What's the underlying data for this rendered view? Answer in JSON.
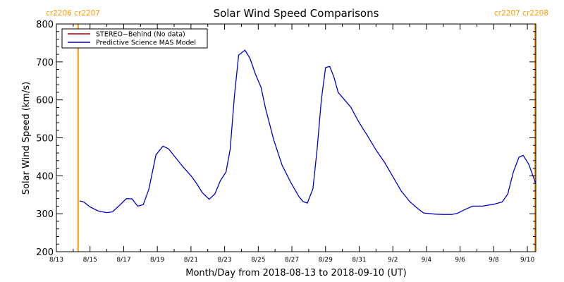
{
  "chart_data": {
    "type": "line",
    "title": "Solar Wind Speed Comparisons",
    "xlabel": "Month/Day from 2018-08-13 to 2018-09-10 (UT)",
    "ylabel": "Solar Wind Speed (km/s)",
    "xlim": [
      "2018-08-13",
      "2018-09-10T12:00"
    ],
    "ylim": [
      200,
      800
    ],
    "y_ticks": [
      200,
      300,
      400,
      500,
      600,
      700,
      800
    ],
    "x_ticks": [
      {
        "date": "2018-08-13",
        "label": "8/13"
      },
      {
        "date": "2018-08-15",
        "label": "8/15"
      },
      {
        "date": "2018-08-17",
        "label": "8/17"
      },
      {
        "date": "2018-08-19",
        "label": "8/19"
      },
      {
        "date": "2018-08-21",
        "label": "8/21"
      },
      {
        "date": "2018-08-23",
        "label": "8/23"
      },
      {
        "date": "2018-08-25",
        "label": "8/25"
      },
      {
        "date": "2018-08-27",
        "label": "8/27"
      },
      {
        "date": "2018-08-29",
        "label": "8/29"
      },
      {
        "date": "2018-08-31",
        "label": "8/31"
      },
      {
        "date": "2018-09-02",
        "label": "9/2"
      },
      {
        "date": "2018-09-04",
        "label": "9/4"
      },
      {
        "date": "2018-09-06",
        "label": "9/6"
      },
      {
        "date": "2018-09-08",
        "label": "9/8"
      },
      {
        "date": "2018-09-10",
        "label": "9/10"
      }
    ],
    "legend_position": "top-left",
    "grid": false,
    "series": [
      {
        "name": "STEREO−Behind (No data)",
        "color": "#aa0000",
        "points": []
      },
      {
        "name": "Predictive Science MAS Model",
        "color": "#0000cc",
        "points": [
          [
            "2018-08-14T09:00",
            334
          ],
          [
            "2018-08-14T15:00",
            331
          ],
          [
            "2018-08-15T00:00",
            318
          ],
          [
            "2018-08-15T12:00",
            307
          ],
          [
            "2018-08-16T00:00",
            303
          ],
          [
            "2018-08-16T08:00",
            305
          ],
          [
            "2018-08-16T18:00",
            322
          ],
          [
            "2018-08-17T04:00",
            340
          ],
          [
            "2018-08-17T12:00",
            339
          ],
          [
            "2018-08-17T20:00",
            320
          ],
          [
            "2018-08-18T04:00",
            324
          ],
          [
            "2018-08-18T12:00",
            365
          ],
          [
            "2018-08-18T22:00",
            455
          ],
          [
            "2018-08-19T08:00",
            478
          ],
          [
            "2018-08-19T16:00",
            471
          ],
          [
            "2018-08-20T02:00",
            448
          ],
          [
            "2018-08-20T12:00",
            425
          ],
          [
            "2018-08-21T00:00",
            400
          ],
          [
            "2018-08-21T08:00",
            380
          ],
          [
            "2018-08-21T16:00",
            356
          ],
          [
            "2018-08-22T02:00",
            338
          ],
          [
            "2018-08-22T10:00",
            352
          ],
          [
            "2018-08-22T18:00",
            387
          ],
          [
            "2018-08-23T02:00",
            410
          ],
          [
            "2018-08-23T08:00",
            470
          ],
          [
            "2018-08-23T14:00",
            610
          ],
          [
            "2018-08-23T20:00",
            718
          ],
          [
            "2018-08-24T05:00",
            731
          ],
          [
            "2018-08-24T12:00",
            710
          ],
          [
            "2018-08-24T20:00",
            668
          ],
          [
            "2018-08-25T04:00",
            633
          ],
          [
            "2018-08-25T10:00",
            580
          ],
          [
            "2018-08-25T22:00",
            495
          ],
          [
            "2018-08-26T10:00",
            428
          ],
          [
            "2018-08-26T22:00",
            384
          ],
          [
            "2018-08-27T10:00",
            345
          ],
          [
            "2018-08-27T16:00",
            332
          ],
          [
            "2018-08-27T22:00",
            328
          ],
          [
            "2018-08-28T06:00",
            366
          ],
          [
            "2018-08-28T12:00",
            470
          ],
          [
            "2018-08-28T18:00",
            600
          ],
          [
            "2018-08-29T00:00",
            685
          ],
          [
            "2018-08-29T06:00",
            688
          ],
          [
            "2018-08-29T12:00",
            660
          ],
          [
            "2018-08-29T18:00",
            620
          ],
          [
            "2018-08-30T12:00",
            581
          ],
          [
            "2018-08-31T00:00",
            540
          ],
          [
            "2018-08-31T12:00",
            505
          ],
          [
            "2018-09-01T00:00",
            468
          ],
          [
            "2018-09-01T12:00",
            436
          ],
          [
            "2018-09-02T00:00",
            398
          ],
          [
            "2018-09-02T12:00",
            360
          ],
          [
            "2018-09-03T00:00",
            332
          ],
          [
            "2018-09-03T12:00",
            313
          ],
          [
            "2018-09-03T20:00",
            302
          ],
          [
            "2018-09-04T12:00",
            299
          ],
          [
            "2018-09-05T00:00",
            298
          ],
          [
            "2018-09-05T12:00",
            298
          ],
          [
            "2018-09-05T20:00",
            301
          ],
          [
            "2018-09-06T08:00",
            312
          ],
          [
            "2018-09-06T18:00",
            320
          ],
          [
            "2018-09-07T08:00",
            320
          ],
          [
            "2018-09-08T00:00",
            325
          ],
          [
            "2018-09-08T12:00",
            331
          ],
          [
            "2018-09-08T20:00",
            352
          ],
          [
            "2018-09-09T04:00",
            410
          ],
          [
            "2018-09-09T12:00",
            449
          ],
          [
            "2018-09-09T18:00",
            454
          ],
          [
            "2018-09-10T02:00",
            430
          ],
          [
            "2018-09-10T12:00",
            379
          ]
        ]
      }
    ],
    "rotation_markers": [
      {
        "date": "2018-08-14T07:00",
        "label": "cr2206 cr2207",
        "position": "left",
        "color": "#ff9900"
      },
      {
        "date": "2018-09-10T11:00",
        "label": "cr2207 cr2208",
        "position": "right",
        "color": "#ff9900"
      }
    ]
  }
}
